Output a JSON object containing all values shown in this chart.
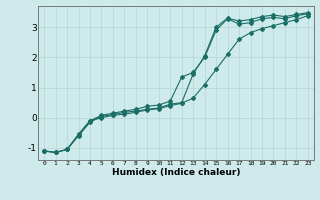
{
  "xlabel": "Humidex (Indice chaleur)",
  "xlim": [
    -0.5,
    23.5
  ],
  "ylim": [
    -1.4,
    3.7
  ],
  "bg_color": "#ceeaea",
  "line_color": "#1a6e65",
  "grid_color": "#b8d8d8",
  "xticks": [
    0,
    1,
    2,
    3,
    4,
    5,
    6,
    7,
    8,
    9,
    10,
    11,
    12,
    13,
    14,
    15,
    16,
    17,
    18,
    19,
    20,
    21,
    22,
    23
  ],
  "yticks": [
    -1,
    0,
    1,
    2,
    3
  ],
  "line1_x": [
    0,
    1,
    2,
    3,
    4,
    5,
    6,
    7,
    8,
    9,
    10,
    11,
    12,
    13,
    14,
    15,
    16,
    17,
    18,
    19,
    20,
    21,
    22,
    23
  ],
  "line1_y": [
    -1.1,
    -1.15,
    -1.05,
    -0.6,
    -0.15,
    0.05,
    0.1,
    0.18,
    0.22,
    0.28,
    0.32,
    0.45,
    0.5,
    1.45,
    2.05,
    3.0,
    3.3,
    3.2,
    3.25,
    3.35,
    3.4,
    3.35,
    3.42,
    3.48
  ],
  "line2_x": [
    0,
    1,
    2,
    3,
    4,
    5,
    6,
    7,
    8,
    9,
    10,
    11,
    12,
    13,
    14,
    15,
    16,
    17,
    18,
    19,
    20,
    21,
    22,
    23
  ],
  "line2_y": [
    -1.1,
    -1.15,
    -1.05,
    -0.55,
    -0.1,
    0.08,
    0.15,
    0.22,
    0.28,
    0.38,
    0.42,
    0.55,
    1.35,
    1.5,
    2.0,
    2.9,
    3.28,
    3.1,
    3.15,
    3.28,
    3.32,
    3.28,
    3.38,
    3.44
  ],
  "line3_x": [
    0,
    1,
    2,
    3,
    4,
    5,
    6,
    7,
    8,
    9,
    10,
    11,
    12,
    13,
    14,
    15,
    16,
    17,
    18,
    19,
    20,
    21,
    22,
    23
  ],
  "line3_y": [
    -1.1,
    -1.15,
    -1.05,
    -0.55,
    -0.1,
    0.0,
    0.08,
    0.12,
    0.18,
    0.26,
    0.3,
    0.4,
    0.48,
    0.65,
    1.1,
    1.6,
    2.1,
    2.6,
    2.82,
    2.95,
    3.05,
    3.15,
    3.25,
    3.38
  ]
}
